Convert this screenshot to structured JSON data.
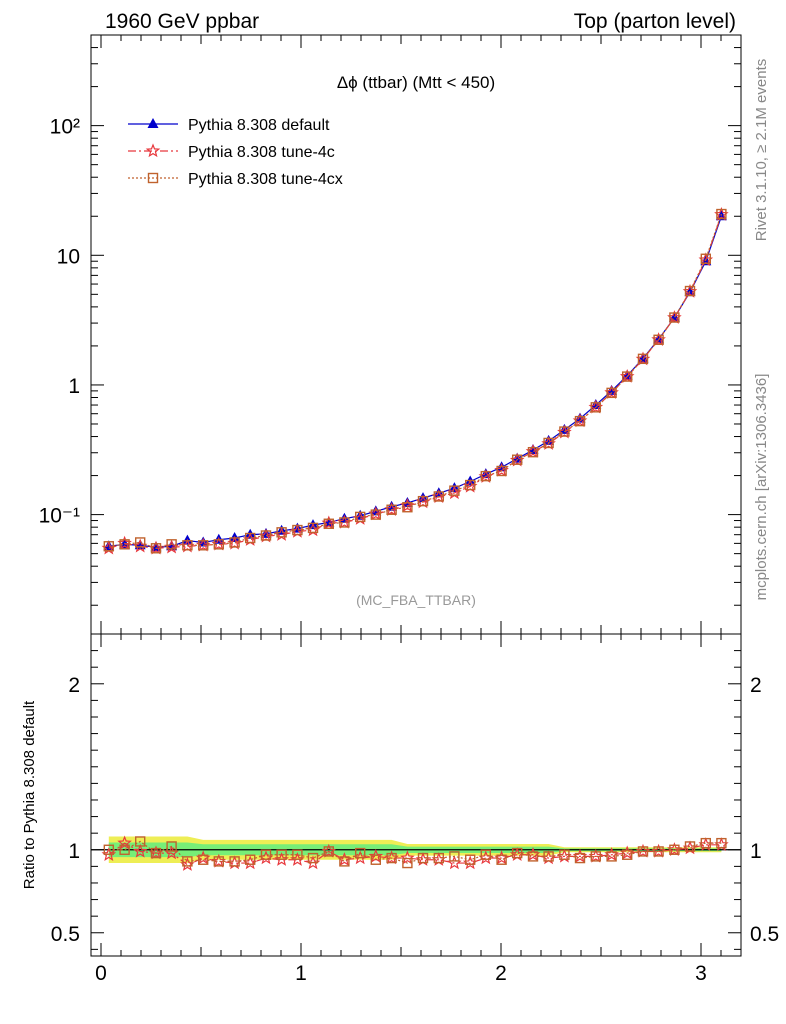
{
  "header": {
    "left": "1960 GeV ppbar",
    "right": "Top (parton level)"
  },
  "side_labels": {
    "rivet": "Rivet 3.1.10, ≥ 2.1M events",
    "mcplots": "mcplots.cern.ch [arXiv:1306.3436]"
  },
  "watermark": "(MC_FBA_TTBAR)",
  "chart_data": [
    {
      "type": "line",
      "title": "Δϕ (ttbar) (Mtt < 450)",
      "scale": "log",
      "ylim": [
        0.012,
        500
      ],
      "xlim": [
        -0.05,
        3.2
      ],
      "grid": false,
      "legend_position": "top-left",
      "x_ticks": [
        "0",
        "1",
        "2",
        "3"
      ],
      "y_ticks": [
        "10⁻¹",
        "1",
        "10",
        "10²"
      ],
      "x": [
        0.039,
        0.118,
        0.196,
        0.275,
        0.353,
        0.432,
        0.511,
        0.589,
        0.668,
        0.746,
        0.825,
        0.903,
        0.982,
        1.06,
        1.139,
        1.217,
        1.296,
        1.374,
        1.453,
        1.532,
        1.61,
        1.689,
        1.767,
        1.846,
        1.924,
        2.003,
        2.081,
        2.16,
        2.238,
        2.317,
        2.395,
        2.474,
        2.553,
        2.631,
        2.71,
        2.788,
        2.867,
        2.945,
        3.024,
        3.102
      ],
      "series": [
        {
          "name": "Pythia 8.308 default",
          "color": "#0000cc",
          "marker": "triangle",
          "dash": "solid",
          "values": [
            0.057,
            0.059,
            0.058,
            0.056,
            0.057,
            0.063,
            0.061,
            0.064,
            0.066,
            0.07,
            0.071,
            0.075,
            0.078,
            0.083,
            0.087,
            0.093,
            0.098,
            0.106,
            0.115,
            0.123,
            0.134,
            0.146,
            0.16,
            0.18,
            0.205,
            0.232,
            0.27,
            0.315,
            0.37,
            0.45,
            0.55,
            0.7,
            0.9,
            1.18,
            1.6,
            2.25,
            3.3,
            5.2,
            9.0,
            20.0
          ]
        },
        {
          "name": "Pythia 8.308 tune-4c",
          "color": "#e8383d",
          "marker": "star",
          "dash": "dashdot",
          "values": [
            0.055,
            0.06,
            0.057,
            0.055,
            0.056,
            0.057,
            0.058,
            0.059,
            0.06,
            0.064,
            0.068,
            0.07,
            0.074,
            0.076,
            0.086,
            0.087,
            0.093,
            0.101,
            0.109,
            0.117,
            0.125,
            0.137,
            0.147,
            0.165,
            0.196,
            0.219,
            0.262,
            0.306,
            0.352,
            0.431,
            0.528,
            0.672,
            0.871,
            1.16,
            1.58,
            2.23,
            3.3,
            5.25,
            9.2,
            20.6
          ]
        },
        {
          "name": "Pythia 8.308 tune-4cx",
          "color": "#c0622d",
          "marker": "square",
          "dash": "dotted",
          "values": [
            0.057,
            0.059,
            0.061,
            0.055,
            0.059,
            0.058,
            0.058,
            0.059,
            0.061,
            0.066,
            0.069,
            0.073,
            0.076,
            0.079,
            0.085,
            0.087,
            0.096,
            0.1,
            0.109,
            0.114,
            0.127,
            0.138,
            0.153,
            0.169,
            0.198,
            0.217,
            0.265,
            0.303,
            0.357,
            0.437,
            0.526,
            0.672,
            0.869,
            1.16,
            1.59,
            2.23,
            3.31,
            5.3,
            9.4,
            20.8
          ]
        }
      ]
    },
    {
      "type": "line",
      "ylabel": "Ratio to Pythia 8.308 default",
      "ylim": [
        0.36,
        2.3
      ],
      "xlim": [
        -0.05,
        3.2
      ],
      "grid": false,
      "x_ticks": [
        "0",
        "1",
        "2",
        "3"
      ],
      "y_ticks": [
        "0.5",
        "1",
        "2"
      ],
      "reference_line": 1,
      "uncertainty_band": {
        "inner_color": "#77ee77",
        "outer_color": "#eeee55"
      },
      "series": [
        {
          "name": "Pythia 8.308 tune-4c",
          "color": "#e8383d",
          "marker": "star",
          "dash": "dashdot",
          "values": [
            0.97,
            1.04,
            0.99,
            0.98,
            0.98,
            0.91,
            0.95,
            0.93,
            0.92,
            0.92,
            0.95,
            0.94,
            0.94,
            0.92,
            0.99,
            0.94,
            0.95,
            0.96,
            0.95,
            0.95,
            0.94,
            0.94,
            0.92,
            0.92,
            0.95,
            0.95,
            0.97,
            0.97,
            0.95,
            0.96,
            0.96,
            0.96,
            0.97,
            0.98,
            0.99,
            0.99,
            1.0,
            1.01,
            1.03,
            1.03
          ]
        },
        {
          "name": "Pythia 8.308 tune-4cx",
          "color": "#c0622d",
          "marker": "square",
          "dash": "dotted",
          "values": [
            1.0,
            1.0,
            1.05,
            0.98,
            1.02,
            0.93,
            0.94,
            0.93,
            0.93,
            0.94,
            0.97,
            0.97,
            0.97,
            0.95,
            0.99,
            0.93,
            0.98,
            0.94,
            0.95,
            0.92,
            0.95,
            0.95,
            0.96,
            0.94,
            0.97,
            0.94,
            0.98,
            0.96,
            0.96,
            0.97,
            0.95,
            0.96,
            0.96,
            0.97,
            0.99,
            0.99,
            1.0,
            1.02,
            1.04,
            1.04
          ]
        }
      ]
    }
  ]
}
